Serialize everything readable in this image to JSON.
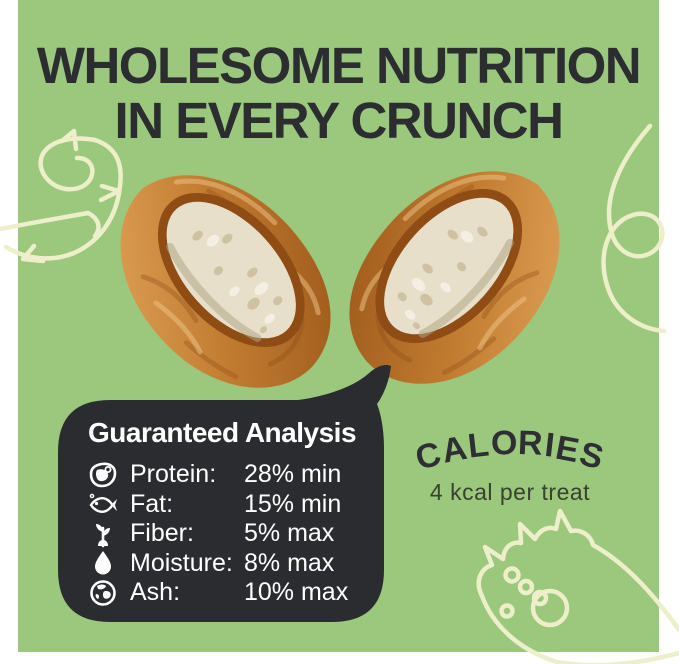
{
  "title": {
    "line1": "WHOLESOME NUTRITION",
    "line2": "IN EVERY CRUNCH"
  },
  "analysis": {
    "heading": "Guaranteed Analysis",
    "rows": [
      {
        "icon": "steak-icon",
        "label": "Protein:",
        "value": "28% min"
      },
      {
        "icon": "fish-icon",
        "label": "Fat:",
        "value": "15% min"
      },
      {
        "icon": "plant-icon",
        "label": "Fiber:",
        "value": "5% max"
      },
      {
        "icon": "droplet-icon",
        "label": "Moisture:",
        "value": "8% max"
      },
      {
        "icon": "globe-icon",
        "label": "Ash:",
        "value": "10% max"
      }
    ]
  },
  "calories": {
    "heading": "CALORIES",
    "subtext": "4 kcal per treat"
  },
  "colors": {
    "background_green": "#9bc87d",
    "margin_white": "#ffffff",
    "headline_text": "#2c2d31",
    "bubble_fill": "#2b2c30",
    "bubble_text": "#ffffff",
    "doodle_cream": "#ecefc9",
    "treat_crust": "#c07a2f",
    "treat_filling": "#e7dfca"
  },
  "decorations": [
    "shrimp-doodle",
    "loop-doodle",
    "paw-doodle"
  ],
  "image": {
    "subject": "dog treat split in half showing creamy filling"
  }
}
